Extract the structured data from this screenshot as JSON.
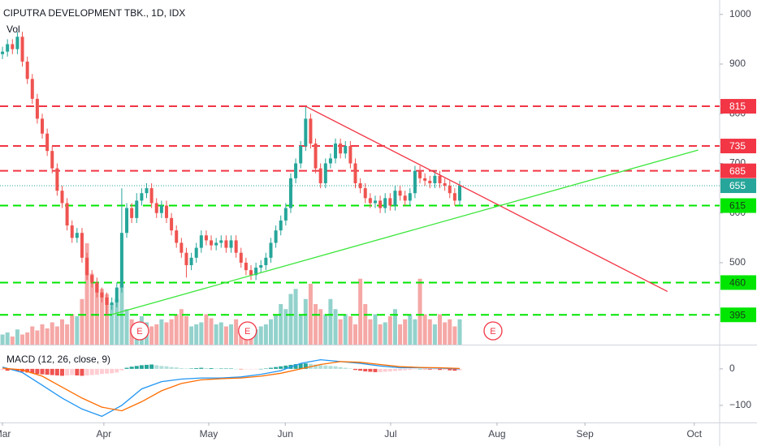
{
  "chart_data": {
    "type": "candlestick",
    "title": "CIPUTRA DEVELOPMENT TBK., 1D, IDX",
    "volume_title": "Vol",
    "xlim": [
      -0.5,
      144.3
    ],
    "xticks": [
      {
        "value": 0,
        "label": "Mar"
      },
      {
        "value": 20.4,
        "label": "Apr"
      },
      {
        "value": 41.5,
        "label": "May"
      },
      {
        "value": 56.9,
        "label": "Jun"
      },
      {
        "value": 78.1,
        "label": "Jul"
      },
      {
        "value": 99.5,
        "label": "Aug"
      },
      {
        "value": 117.2,
        "label": "Sep"
      },
      {
        "value": 139.2,
        "label": "Oct"
      }
    ],
    "ylim": [
      335,
      1029
    ],
    "yticks": [
      500,
      600,
      700,
      800,
      900,
      1000
    ],
    "up_color": "#26a69a",
    "down_color": "#ef5350",
    "volume_up_color": "#93d2cc",
    "volume_down_color": "#f5a8a6",
    "volume_lim": [
      0,
      120
    ],
    "candles": {
      "open": [
        920,
        925,
        940,
        930,
        955,
        905,
        870,
        830,
        790,
        760,
        725,
        690,
        645,
        620,
        575,
        550,
        560,
        510,
        475,
        460,
        440,
        430,
        415,
        420,
        450,
        560,
        610,
        590,
        625,
        640,
        650,
        620,
        600,
        615,
        590,
        565,
        540,
        520,
        495,
        510,
        530,
        555,
        545,
        535,
        540,
        545,
        530,
        545,
        520,
        500,
        485,
        475,
        490,
        495,
        510,
        540,
        565,
        585,
        610,
        670,
        700,
        735,
        790,
        740,
        690,
        660,
        700,
        710,
        740,
        720,
        735,
        700,
        660,
        650,
        630,
        620,
        625,
        610,
        630,
        615,
        645,
        635,
        625,
        640,
        685,
        670,
        665,
        660,
        675,
        660,
        655,
        640,
        625
      ],
      "high": [
        935,
        950,
        950,
        965,
        965,
        915,
        880,
        840,
        800,
        770,
        735,
        700,
        655,
        630,
        585,
        570,
        570,
        520,
        485,
        470,
        450,
        440,
        430,
        460,
        650,
        620,
        620,
        640,
        650,
        660,
        660,
        630,
        625,
        625,
        600,
        575,
        550,
        530,
        520,
        540,
        565,
        565,
        555,
        550,
        555,
        555,
        555,
        555,
        530,
        510,
        495,
        500,
        505,
        520,
        550,
        575,
        595,
        620,
        680,
        710,
        745,
        815,
        800,
        750,
        700,
        710,
        720,
        750,
        750,
        745,
        745,
        710,
        670,
        660,
        640,
        635,
        635,
        640,
        640,
        655,
        655,
        645,
        650,
        695,
        695,
        680,
        675,
        685,
        685,
        670,
        665,
        650,
        665
      ],
      "low": [
        910,
        915,
        920,
        920,
        895,
        860,
        820,
        780,
        750,
        715,
        680,
        635,
        610,
        565,
        540,
        540,
        500,
        465,
        450,
        430,
        420,
        395,
        405,
        410,
        440,
        550,
        580,
        580,
        615,
        630,
        610,
        590,
        590,
        580,
        555,
        530,
        510,
        470,
        485,
        500,
        520,
        535,
        525,
        525,
        530,
        520,
        520,
        510,
        490,
        475,
        465,
        465,
        480,
        485,
        500,
        530,
        555,
        575,
        600,
        660,
        690,
        725,
        730,
        680,
        650,
        650,
        690,
        700,
        710,
        710,
        690,
        650,
        640,
        620,
        610,
        610,
        600,
        600,
        605,
        605,
        625,
        615,
        615,
        630,
        660,
        655,
        650,
        650,
        650,
        645,
        630,
        615,
        615
      ],
      "close": [
        925,
        940,
        930,
        955,
        905,
        870,
        830,
        790,
        760,
        725,
        690,
        645,
        620,
        575,
        550,
        560,
        510,
        475,
        460,
        440,
        430,
        415,
        420,
        450,
        560,
        610,
        590,
        625,
        640,
        650,
        620,
        600,
        615,
        590,
        565,
        540,
        520,
        495,
        510,
        530,
        555,
        545,
        535,
        540,
        545,
        530,
        545,
        520,
        500,
        485,
        475,
        490,
        495,
        510,
        540,
        565,
        585,
        610,
        670,
        700,
        735,
        790,
        740,
        690,
        660,
        700,
        710,
        740,
        720,
        735,
        700,
        660,
        650,
        630,
        620,
        625,
        610,
        630,
        615,
        645,
        635,
        625,
        640,
        685,
        670,
        665,
        660,
        675,
        660,
        655,
        640,
        625,
        655
      ],
      "volume": [
        10,
        12,
        8,
        15,
        10,
        12,
        18,
        14,
        20,
        16,
        22,
        18,
        25,
        20,
        30,
        28,
        45,
        100,
        70,
        60,
        55,
        50,
        40,
        45,
        60,
        35,
        25,
        20,
        28,
        22,
        18,
        20,
        25,
        22,
        25,
        30,
        35,
        28,
        18,
        20,
        22,
        30,
        26,
        20,
        22,
        18,
        20,
        25,
        18,
        22,
        20,
        15,
        18,
        20,
        25,
        30,
        40,
        35,
        50,
        55,
        30,
        45,
        60,
        40,
        35,
        30,
        45,
        35,
        25,
        30,
        28,
        20,
        65,
        40,
        25,
        30,
        20,
        22,
        28,
        35,
        20,
        25,
        30,
        25,
        65,
        30,
        25,
        20,
        30,
        22,
        25,
        18,
        25
      ]
    },
    "levels": [
      {
        "value": 815,
        "color": "#f23645",
        "text_color": "#ffffff",
        "style": "dashed"
      },
      {
        "value": 735,
        "color": "#f23645",
        "text_color": "#ffffff",
        "style": "dashed"
      },
      {
        "value": 685,
        "color": "#f23645",
        "text_color": "#ffffff",
        "style": "dashed"
      },
      {
        "value": 655,
        "color": "#26a69a",
        "text_color": "#ffffff",
        "style": "dotted"
      },
      {
        "value": 615,
        "color": "#00e600",
        "text_color": "#1b3a1b",
        "style": "dashed"
      },
      {
        "value": 460,
        "color": "#00e600",
        "text_color": "#1b3a1b",
        "style": "dashed"
      },
      {
        "value": 395,
        "color": "#00e600",
        "text_color": "#1b3a1b",
        "style": "dashed"
      }
    ],
    "trendlines": [
      {
        "color": "#f23645",
        "x": [
          61,
          133.8
        ],
        "y": [
          815,
          442
        ]
      },
      {
        "color": "#3ce63c",
        "x": [
          22.1,
          140
        ],
        "y": [
          396,
          727
        ]
      }
    ],
    "events": [
      {
        "x": 27.6,
        "label": "E"
      },
      {
        "x": 49.3,
        "label": "E"
      },
      {
        "x": 98.7,
        "label": "E"
      }
    ],
    "macd": {
      "title": "MACD (12, 26, close, 9)",
      "ylim": [
        -147,
        62
      ],
      "yticks": [
        {
          "value": -100,
          "label": "−100"
        },
        0
      ],
      "histogram": [
        -3,
        -5,
        -4,
        -6,
        -8,
        -10,
        -12,
        -14,
        -15,
        -16,
        -17,
        -18,
        -19,
        -18,
        -17,
        -18,
        -19,
        -18,
        -17,
        -16,
        -14,
        -13,
        -12,
        -10,
        -4,
        3,
        6,
        8,
        10,
        11,
        12,
        10,
        8,
        7,
        5,
        4,
        2,
        1,
        1,
        2,
        3,
        2,
        2,
        1,
        1,
        1,
        1,
        0,
        -1,
        -1,
        -1,
        -1,
        0,
        1,
        3,
        5,
        7,
        9,
        11,
        13,
        14,
        15,
        14,
        12,
        10,
        9,
        8,
        7,
        5,
        3,
        1,
        -3,
        -5,
        -7,
        -8,
        -9,
        -9,
        -8,
        -7,
        -6,
        -5,
        -4,
        -3,
        -1,
        0,
        -1,
        -2,
        -2,
        -3,
        -3,
        -4,
        -5,
        -4
      ],
      "histogram_colors": [
        "#26a69a",
        "#b2dfdb",
        "#ef5350",
        "#ffcdd2"
      ],
      "x": [
        0,
        4,
        8,
        12,
        16,
        20,
        24,
        28,
        32,
        36,
        40,
        44,
        48,
        52,
        56,
        60,
        64,
        68,
        72,
        76,
        80,
        84,
        88,
        92
      ],
      "macd": [
        5,
        -10,
        -45,
        -80,
        -110,
        -130,
        -100,
        -55,
        -35,
        -28,
        -25,
        -25,
        -22,
        -15,
        -5,
        15,
        25,
        20,
        15,
        8,
        3,
        3,
        2,
        0
      ],
      "signal": [
        2,
        -3,
        -20,
        -50,
        -80,
        -105,
        -115,
        -90,
        -60,
        -40,
        -30,
        -27,
        -25,
        -20,
        -12,
        0,
        12,
        20,
        18,
        12,
        6,
        4,
        3,
        1
      ],
      "macd_color": "#2196f3",
      "signal_color": "#ff6d00"
    }
  }
}
